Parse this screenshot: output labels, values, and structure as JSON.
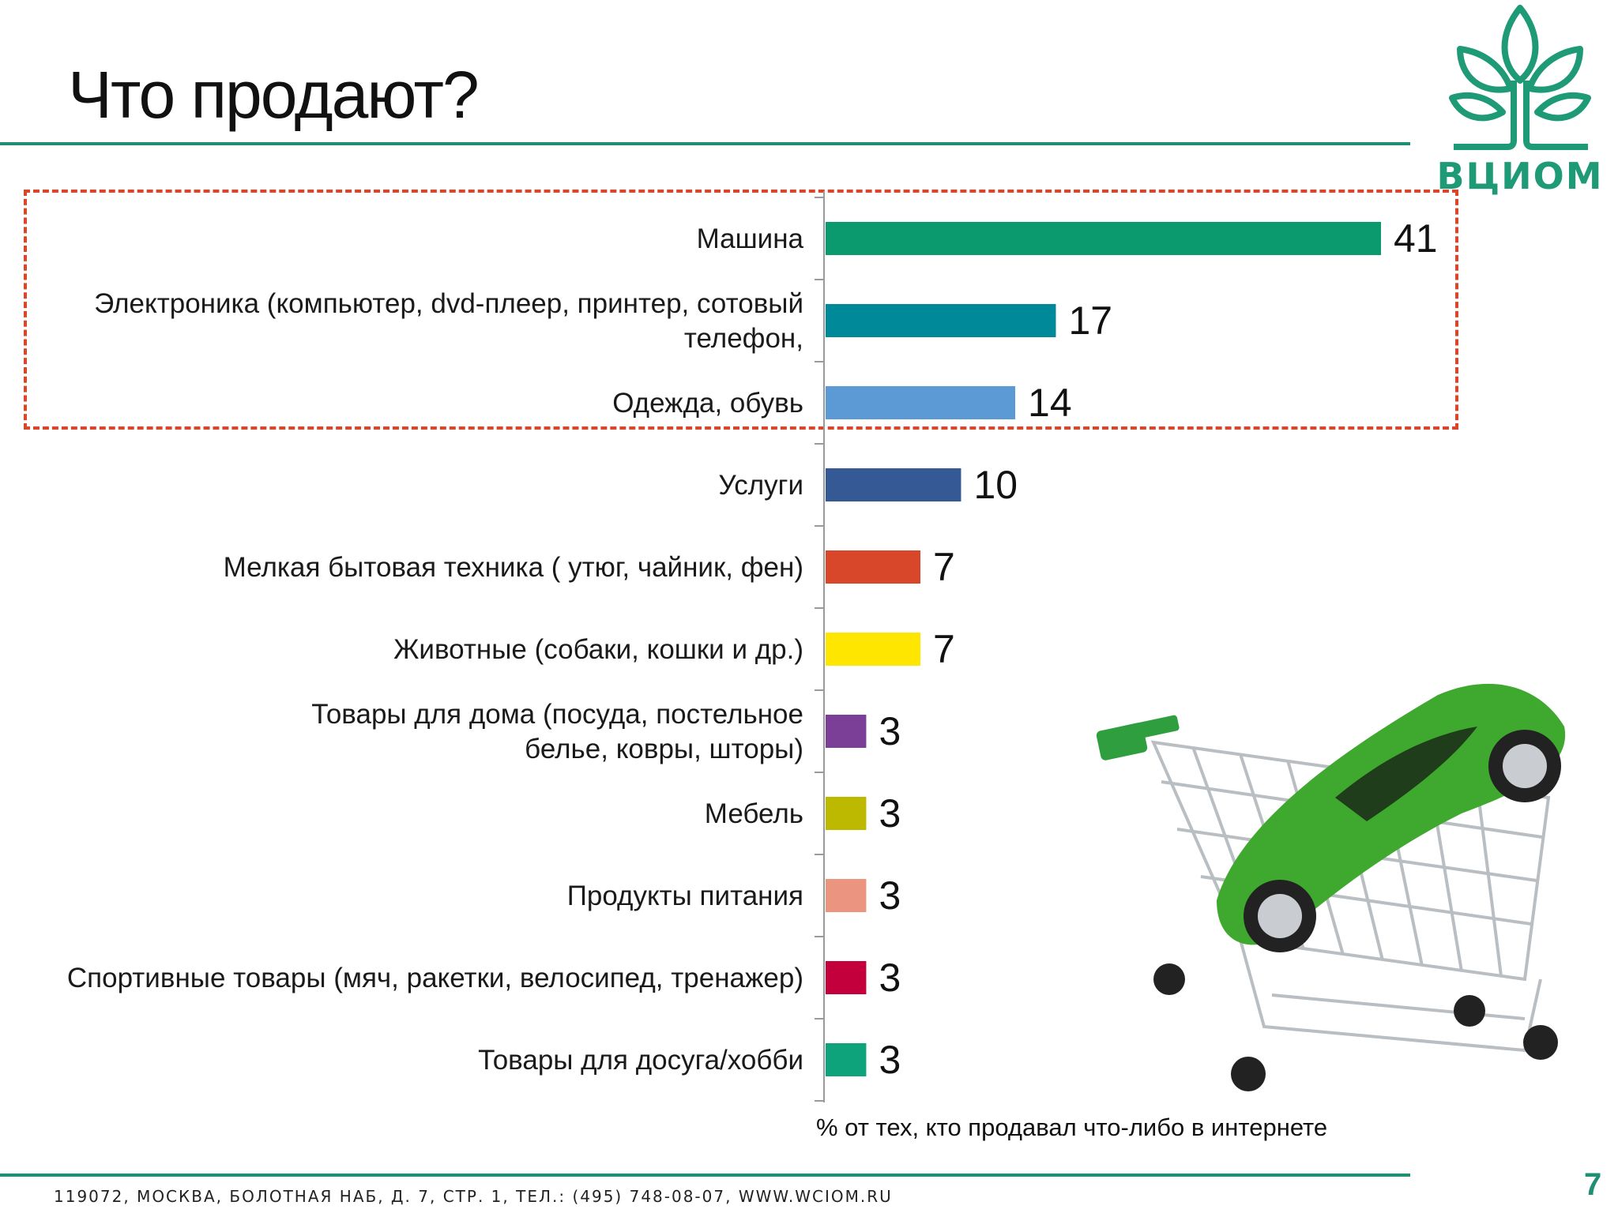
{
  "slide": {
    "title": "Что продают?",
    "logo_text": "ВЦИОМ",
    "footnote": "% от тех, кто продавал  что-либо в интернете",
    "address": "119072, МОСКВА, БОЛОТНАЯ НАБ, Д. 7, СТР. 1, ТЕЛ.: (495) 748-08-07,  WWW.WCIOM.RU",
    "page_number": "7"
  },
  "colors": {
    "accent": "#1e8f73",
    "highlight_border": "#d9472b"
  },
  "chart_data": {
    "type": "bar",
    "orientation": "horizontal",
    "categories": [
      [
        "Машина"
      ],
      [
        "Электроника (компьютер, dvd-плеер, принтер, сотовый",
        "телефон,"
      ],
      [
        "Одежда, обувь"
      ],
      [
        "Услуги"
      ],
      [
        "Мелкая бытовая техника ( утюг, чайник, фен)"
      ],
      [
        "Животные (собаки, кошки и др.)"
      ],
      [
        "Товары для дома (посуда, постельное",
        "белье, ковры, шторы)"
      ],
      [
        "Мебель"
      ],
      [
        "Продукты питания"
      ],
      [
        "Спортивные товары (мяч, ракетки, велосипед, тренажер)"
      ],
      [
        "Товары для досуга/хобби"
      ]
    ],
    "values": [
      41,
      17,
      14,
      10,
      7,
      7,
      3,
      3,
      3,
      3,
      3
    ],
    "bar_colors": [
      "#0b9a6e",
      "#008a99",
      "#5b9ad4",
      "#345994",
      "#d9472b",
      "#ffe600",
      "#7c3f98",
      "#bdb800",
      "#eb9480",
      "#c4003c",
      "#0ea37a"
    ],
    "highlighted_categories": [
      0,
      1,
      2
    ],
    "xlim": [
      0,
      41
    ],
    "grid": false
  }
}
